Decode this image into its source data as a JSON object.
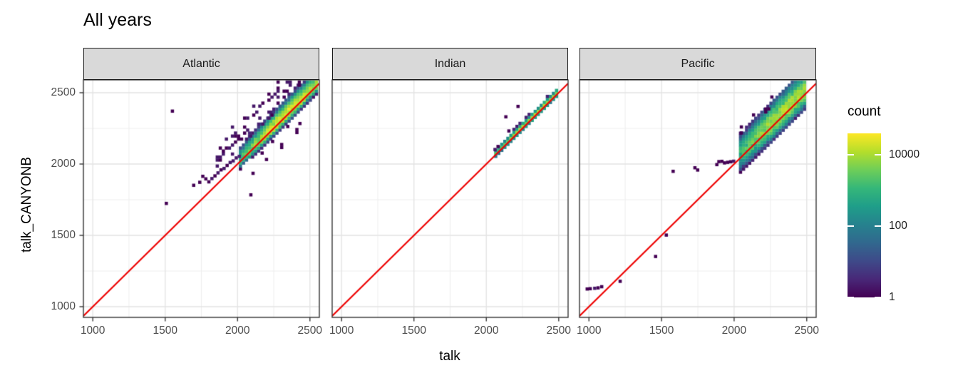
{
  "chart_data": {
    "type": "heatmap",
    "subtype": "bin2d-scatter-comparison",
    "title": "All years",
    "xlabel": "talk",
    "ylabel": "talk_CANYONB",
    "axes": {
      "x_range": [
        935,
        2565
      ],
      "y_range": [
        925,
        2590
      ],
      "x_ticks": [
        1000,
        1500,
        2000,
        2500
      ],
      "y_ticks": [
        1000,
        1500,
        2000,
        2500
      ],
      "minor_ticks": [
        1250,
        1750,
        2250
      ],
      "grid": true
    },
    "bin_size": 21,
    "identity_line": {
      "color": "#ee0000",
      "slope": 1,
      "intercept": 0
    },
    "legend": {
      "title": "count",
      "scale": "log10",
      "tick_values": [
        10000,
        100,
        1
      ],
      "tick_labels": [
        "10000",
        "100",
        "1"
      ],
      "max_count": 40000,
      "position": "right",
      "viridis": [
        "#440154",
        "#482878",
        "#3e4a89",
        "#31688e",
        "#26828e",
        "#1f9e89",
        "#35b779",
        "#6ece58",
        "#b5de2b",
        "#fde725"
      ]
    },
    "facets": [
      {
        "label": "Atlantic",
        "ridge": {
          "x_min": 2020,
          "x_max": 2556,
          "offset": 8,
          "center": 2340,
          "sigma_along": 135,
          "sigma_up": 27,
          "sigma_down": 16,
          "max_count": 28000,
          "span_up": 168,
          "span_down": 105
        },
        "halos": [
          {
            "x_min": 1860,
            "x_max": 2460,
            "dy_min": 105,
            "dy_max": 294,
            "threshold": 0.84,
            "max_count": 2
          },
          {
            "x_min": 2200,
            "x_max": 2480,
            "dy_min": -189,
            "dy_max": -84,
            "threshold": 0.87,
            "max_count": 1
          }
        ],
        "extra_bins": [
          [
            1781,
            1896,
            1
          ],
          [
            1802,
            1875,
            1
          ],
          [
            1823,
            1898,
            2
          ],
          [
            1844,
            1917,
            1
          ],
          [
            1865,
            1938,
            2
          ],
          [
            1886,
            1959,
            1
          ],
          [
            1907,
            1969,
            2
          ],
          [
            1928,
            1990,
            1
          ],
          [
            1949,
            2011,
            2
          ],
          [
            1970,
            2022,
            2
          ],
          [
            1991,
            2043,
            2
          ],
          [
            2012,
            2054,
            3
          ],
          [
            1739,
            1872,
            1
          ],
          [
            1760,
            1914,
            1
          ],
          [
            1697,
            1851,
            1
          ],
          [
            1550,
            2371,
            1
          ],
          [
            1508,
            1724,
            1
          ],
          [
            2092,
            1784,
            1
          ],
          [
            2107,
            1935,
            1
          ],
          [
            2170,
            2077,
            1
          ]
        ]
      },
      {
        "label": "Indian",
        "ridge": {
          "x_min": 2065,
          "x_max": 2492,
          "offset": 10,
          "center": 2330,
          "sigma_along": 150,
          "sigma_up": 9,
          "sigma_down": 8,
          "max_count": 9000,
          "span_up": 42,
          "span_down": 42
        },
        "halos": [],
        "extra_bins": [
          [
            2219,
            2404,
            1
          ],
          [
            2135,
            2331,
            1
          ],
          [
            2156,
            2232,
            1
          ],
          [
            2060,
            2102,
            2
          ],
          [
            2081,
            2123,
            1
          ]
        ]
      },
      {
        "label": "Pacific",
        "ridge": {
          "x_min": 2044,
          "x_max": 2488,
          "offset": 25,
          "center": 2360,
          "sigma_along": 150,
          "sigma_up": 40,
          "sigma_down": 33,
          "max_count": 12000,
          "span_up": 147,
          "span_down": 126
        },
        "halos": [
          {
            "x_min": 2050,
            "x_max": 2300,
            "dy_min": 147,
            "dy_max": 231,
            "threshold": 0.88,
            "max_count": 1
          }
        ],
        "extra_bins": [
          [
            1997,
            2020,
            2
          ],
          [
            1955,
            2012,
            1
          ],
          [
            1934,
            2008,
            1
          ],
          [
            1976,
            2016,
            1
          ],
          [
            1895,
            2017,
            1
          ],
          [
            1916,
            2019,
            1
          ],
          [
            1881,
            1996,
            1
          ],
          [
            1730,
            1974,
            1
          ],
          [
            1749,
            1958,
            1
          ],
          [
            1580,
            1949,
            1
          ],
          [
            1533,
            1502,
            1
          ],
          [
            1459,
            1352,
            1
          ],
          [
            1215,
            1178,
            1
          ],
          [
            988,
            1124,
            1
          ],
          [
            1009,
            1126,
            1
          ],
          [
            1040,
            1129,
            2
          ],
          [
            1088,
            1140,
            1
          ],
          [
            1063,
            1132,
            1
          ]
        ]
      }
    ],
    "style": {
      "grid_major": "#e3e3e3",
      "grid_minor": "#eeeeee",
      "panel_border": "#333333",
      "panel_bg": "#ffffff",
      "strip_fill": "#d9d9d9",
      "strip_border": "#1a1a1a",
      "axis_text": "#4d4d4d",
      "tick_mark": "#333333"
    }
  }
}
